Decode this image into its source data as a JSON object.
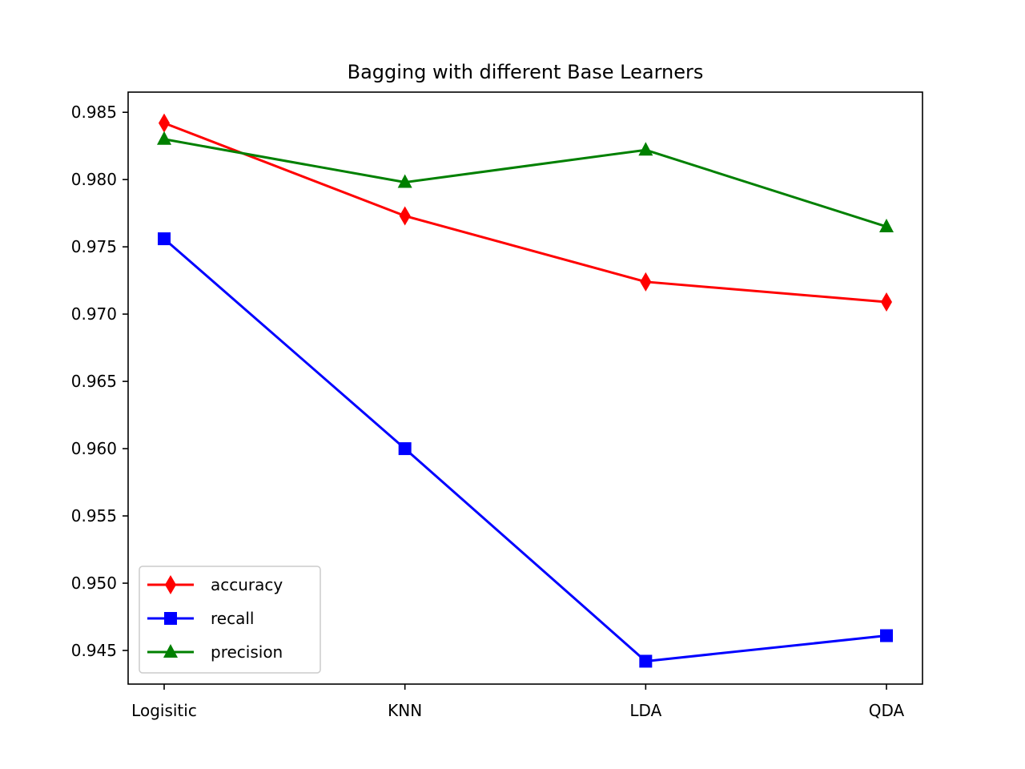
{
  "chart_data": {
    "type": "line",
    "title": "Bagging with different Base Learners",
    "xlabel": "",
    "ylabel": "",
    "categories": [
      "Logisitic",
      "KNN",
      "LDA",
      "QDA"
    ],
    "ylim": [
      0.9425,
      0.9865
    ],
    "yticks": [
      "0.945",
      "0.950",
      "0.955",
      "0.960",
      "0.965",
      "0.970",
      "0.975",
      "0.980",
      "0.985"
    ],
    "grid": false,
    "legend_position": "lower-left",
    "series": [
      {
        "name": "accuracy",
        "color": "#ff0000",
        "marker": "thin_diamond",
        "values": [
          0.9842,
          0.9773,
          0.9724,
          0.9709
        ]
      },
      {
        "name": "recall",
        "color": "#0000ff",
        "marker": "square",
        "values": [
          0.9756,
          0.96,
          0.9442,
          0.9461
        ]
      },
      {
        "name": "precision",
        "color": "#008000",
        "marker": "triangle",
        "values": [
          0.983,
          0.9798,
          0.9822,
          0.9765
        ]
      }
    ]
  }
}
